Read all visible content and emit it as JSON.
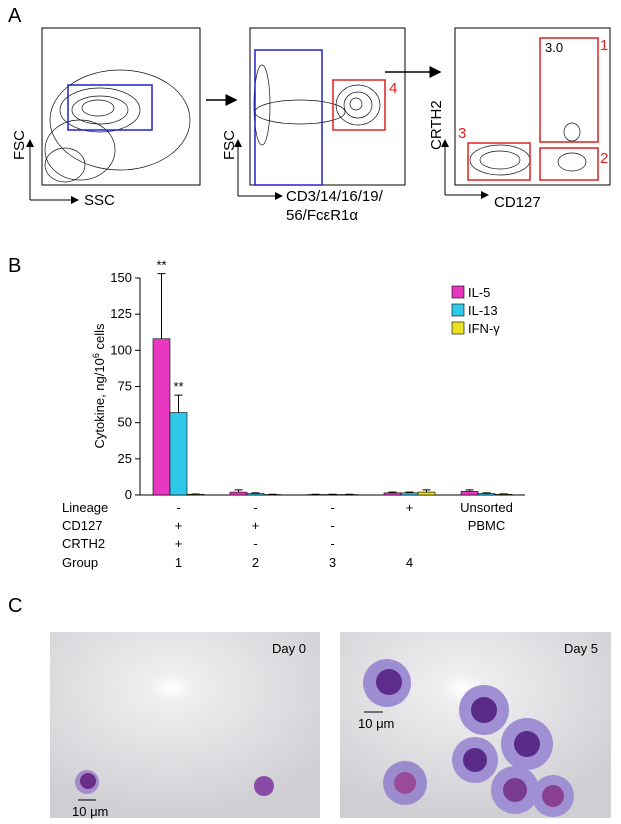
{
  "panel_labels": [
    "A",
    "B",
    "C"
  ],
  "panel_a": {
    "plot1": {
      "y_label": "FSC",
      "x_label": "SSC"
    },
    "plot2": {
      "y_label": "FSC",
      "x_label": [
        "CD3/14/16/19/",
        "56/FcεR1α"
      ],
      "gate_label": "4"
    },
    "plot3": {
      "y_label": "CRTH2",
      "x_label": "CD127",
      "gate_labels": [
        "1",
        "2",
        "3"
      ],
      "gate_value": "3.0"
    }
  },
  "chart_data": {
    "type": "bar",
    "ylabel": {
      "text": "Cytokine, ng/10",
      "sup": "6",
      "after": " cells"
    },
    "ylim": [
      0,
      150
    ],
    "yticks": [
      0,
      25,
      50,
      75,
      100,
      125,
      150
    ],
    "categories": [
      "1",
      "2",
      "3",
      "4",
      null
    ],
    "category_label": "Group",
    "label_rows": [
      {
        "label": "Lineage",
        "cells": [
          "-",
          "-",
          "-",
          "+",
          "Unsorted"
        ]
      },
      {
        "label": "CD127",
        "cells": [
          "+",
          "+",
          "-",
          null,
          "PBMC"
        ]
      },
      {
        "label": "CRTH2",
        "cells": [
          "+",
          "-",
          "-",
          null,
          null
        ]
      }
    ],
    "series": [
      {
        "name": "IL-5",
        "color": "#e838c0",
        "values": [
          108,
          2,
          0.3,
          1.5,
          2.5
        ],
        "errors": [
          45,
          1.5,
          0.2,
          0.5,
          1
        ]
      },
      {
        "name": "IL-13",
        "color": "#30c8e8",
        "values": [
          57,
          1,
          0.3,
          1.5,
          1
        ],
        "errors": [
          12,
          0.5,
          0.2,
          0.5,
          0.5
        ]
      },
      {
        "name": "IFN-γ",
        "color": "#e8e020",
        "values": [
          0.5,
          0.3,
          0.3,
          2,
          0.5
        ],
        "errors": [
          0.2,
          0.2,
          0.2,
          1.5,
          0.3
        ]
      }
    ],
    "annotations": [
      "**",
      "**"
    ],
    "legend": "top-right"
  },
  "panel_c": {
    "images": [
      {
        "label": "Day 0",
        "scale": "10 μm"
      },
      {
        "label": "Day 5",
        "scale": "10 μm"
      }
    ]
  }
}
